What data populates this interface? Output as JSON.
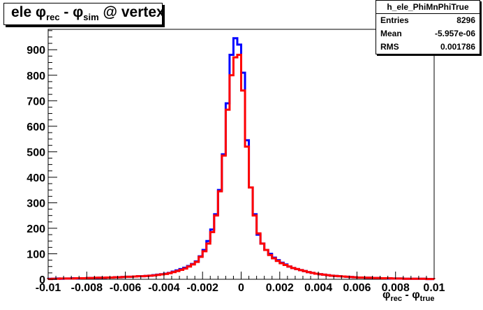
{
  "title": {
    "main": "ele φ",
    "sub1": "rec",
    "mid": " - φ",
    "sub2": "sim",
    "tail": " @ vertex"
  },
  "stats": {
    "name": "h_ele_PhiMnPhiTrue",
    "entries_label": "Entries",
    "entries_value": "8296",
    "mean_label": "Mean",
    "mean_value": "-5.957e-06",
    "rms_label": "RMS",
    "rms_value": "0.001786"
  },
  "xaxis_title": {
    "main": "φ",
    "sub1": "rec",
    "mid": " - φ",
    "sub2": "true"
  },
  "colors": {
    "series_blue": "#0000ff",
    "series_red": "#ff0000",
    "axis": "#000000"
  },
  "chart_data": {
    "type": "line",
    "xlim": [
      -0.01,
      0.01
    ],
    "ylim": [
      0,
      980
    ],
    "x_ticks": [
      -0.01,
      -0.008,
      -0.006,
      -0.004,
      -0.002,
      0,
      0.002,
      0.004,
      0.006,
      0.008,
      0.01
    ],
    "x_tick_labels": [
      "-0.01",
      "-0.008",
      "-0.006",
      "-0.004",
      "-0.002",
      "0",
      "0.002",
      "0.004",
      "0.006",
      "0.008",
      "0.01"
    ],
    "y_ticks": [
      0,
      100,
      200,
      300,
      400,
      500,
      600,
      700,
      800,
      900
    ],
    "y_tick_labels": [
      "0",
      "100",
      "200",
      "300",
      "400",
      "500",
      "600",
      "700",
      "800",
      "900"
    ],
    "grid": false,
    "bin_edges_start": -0.01,
    "bin_width": 0.0002,
    "series": [
      {
        "color": "blue",
        "values": [
          2,
          2,
          3,
          2,
          3,
          3,
          4,
          3,
          4,
          4,
          5,
          5,
          5,
          6,
          6,
          7,
          7,
          8,
          8,
          9,
          10,
          10,
          11,
          12,
          12,
          13,
          14,
          16,
          18,
          20,
          22,
          25,
          30,
          35,
          40,
          45,
          52,
          60,
          70,
          90,
          115,
          150,
          195,
          255,
          350,
          490,
          690,
          880,
          945,
          920,
          810,
          545,
          360,
          255,
          175,
          140,
          115,
          100,
          85,
          75,
          65,
          58,
          50,
          44,
          40,
          36,
          32,
          28,
          25,
          22,
          20,
          18,
          16,
          14,
          13,
          12,
          11,
          10,
          9,
          8,
          7,
          7,
          6,
          6,
          5,
          5,
          4,
          4,
          3,
          3,
          3,
          3,
          2,
          2,
          2,
          2,
          2,
          2,
          1,
          1
        ]
      },
      {
        "color": "red",
        "values": [
          1,
          2,
          2,
          3,
          3,
          3,
          3,
          4,
          4,
          4,
          5,
          5,
          6,
          6,
          6,
          7,
          7,
          8,
          8,
          9,
          10,
          10,
          11,
          12,
          12,
          13,
          14,
          15,
          17,
          19,
          21,
          24,
          28,
          32,
          37,
          42,
          50,
          58,
          68,
          88,
          110,
          140,
          185,
          250,
          345,
          485,
          665,
          800,
          870,
          880,
          740,
          520,
          360,
          250,
          180,
          140,
          115,
          95,
          82,
          72,
          63,
          56,
          50,
          44,
          40,
          36,
          32,
          28,
          25,
          22,
          20,
          18,
          16,
          14,
          13,
          12,
          11,
          10,
          9,
          8,
          7,
          7,
          6,
          6,
          5,
          5,
          4,
          4,
          4,
          3,
          3,
          3,
          2,
          2,
          2,
          2,
          2,
          2,
          1,
          1
        ]
      }
    ]
  }
}
